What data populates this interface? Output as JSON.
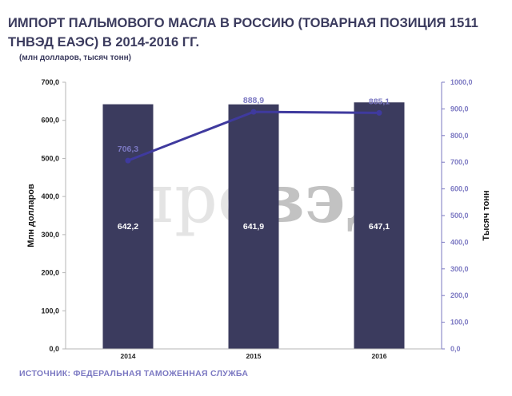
{
  "title": "ИМПОРТ ПАЛЬМОВОГО МАСЛА В РОССИЮ (ТОВАРНАЯ ПОЗИЦИЯ 1511 ТНВЭД ЕАЭС) В 2014-2016 ГГ.",
  "subtitle": "(млн долларов, тысяч тонн)",
  "source": "ИСТОЧНИК:  ФЕДЕРАЛЬНАЯ ТАМОЖЕННАЯ  СЛУЖБА",
  "watermark": {
    "light": "про",
    "dark": "вэд"
  },
  "colors": {
    "bar": "#3b3b5e",
    "line": "#3f3a9e",
    "line_label": "#7b78c2",
    "text": "#3b3b5e"
  },
  "chart_data": {
    "type": "bar",
    "categories": [
      "2014",
      "2015",
      "2016"
    ],
    "series": [
      {
        "name": "Млн долларов",
        "type": "bar",
        "axis": "left",
        "values": [
          642.2,
          641.9,
          647.1
        ],
        "labels": [
          "642,2",
          "641,9",
          "647,1"
        ]
      },
      {
        "name": "Тысяч тонн",
        "type": "line",
        "axis": "right",
        "values": [
          706.3,
          888.9,
          885.1
        ],
        "labels": [
          "706,3",
          "888,9",
          "885,1"
        ]
      }
    ],
    "ylabel": "Млн долларов",
    "y2label": "Тысяч тонн",
    "ylim": [
      0,
      700
    ],
    "y2lim": [
      0,
      1000
    ],
    "yticks": [
      "0,0",
      "100,0",
      "200,0",
      "300,0",
      "400,0",
      "500,0",
      "600,0",
      "700,0"
    ],
    "y2ticks": [
      "0,0",
      "100,0",
      "200,0",
      "300,0",
      "400,0",
      "500,0",
      "600,0",
      "700,0",
      "800,0",
      "900,0",
      "1000,0"
    ],
    "grid": false
  }
}
